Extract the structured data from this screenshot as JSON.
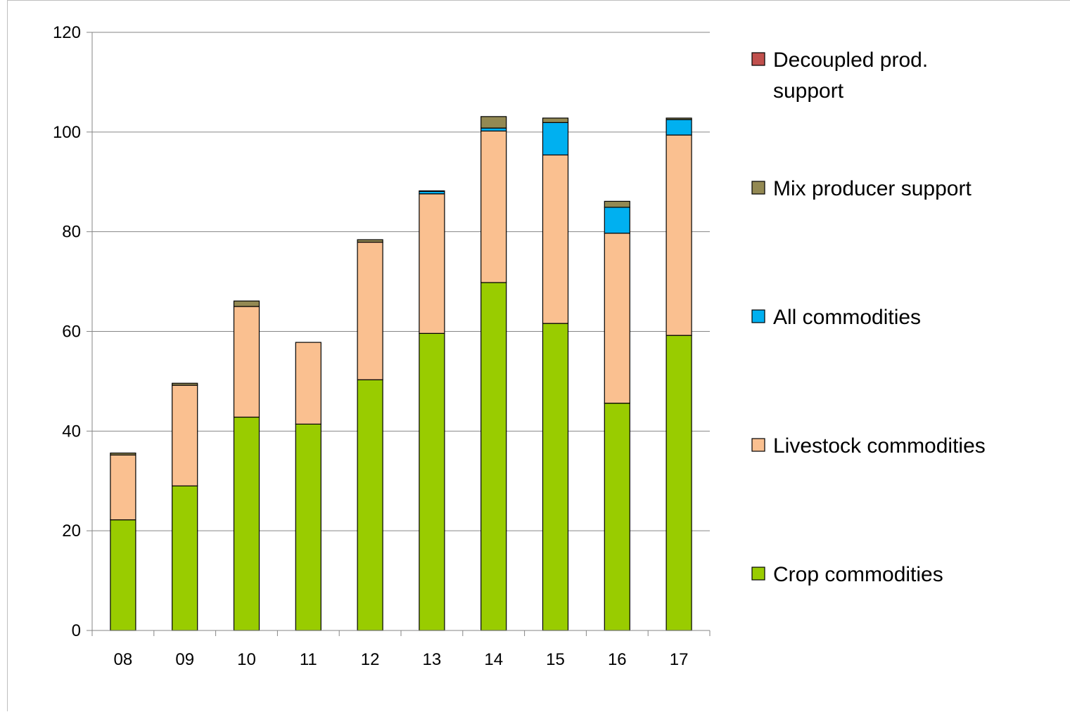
{
  "chart_data": {
    "type": "bar",
    "stacked": true,
    "categories": [
      "08",
      "09",
      "10",
      "11",
      "12",
      "13",
      "14",
      "15",
      "16",
      "17"
    ],
    "series": [
      {
        "name": "Crop commodities",
        "color": "#99cc00",
        "values": [
          22.2,
          29.0,
          42.8,
          41.4,
          50.3,
          59.6,
          69.8,
          61.6,
          45.6,
          59.2
        ]
      },
      {
        "name": "Livestock commodities",
        "color": "#fac090",
        "values": [
          13.0,
          20.2,
          22.2,
          16.4,
          27.6,
          28.0,
          30.4,
          33.8,
          34.1,
          40.2
        ]
      },
      {
        "name": "All commodities",
        "color": "#00b0f0",
        "values": [
          0.0,
          0.0,
          0.0,
          0.0,
          0.0,
          0.5,
          0.6,
          6.5,
          5.2,
          3.1
        ]
      },
      {
        "name": "Mix producer support",
        "color": "#938953",
        "values": [
          0.4,
          0.4,
          1.1,
          0.0,
          0.5,
          0.1,
          2.3,
          0.9,
          1.2,
          0.3
        ]
      },
      {
        "name": "Decoupled prod. support",
        "color": "#c0504d",
        "values": [
          0,
          0,
          0,
          0,
          0,
          0,
          0,
          0,
          0,
          0
        ]
      }
    ],
    "legend_order": [
      "Decoupled prod. support",
      "Mix producer support",
      "All commodities",
      "Livestock commodities",
      "Crop commodities"
    ],
    "legend_position": "right",
    "ylim": [
      0,
      120
    ],
    "yticks": [
      0,
      20,
      40,
      60,
      80,
      100,
      120
    ],
    "grid": true,
    "title": "",
    "xlabel": "",
    "ylabel": ""
  }
}
